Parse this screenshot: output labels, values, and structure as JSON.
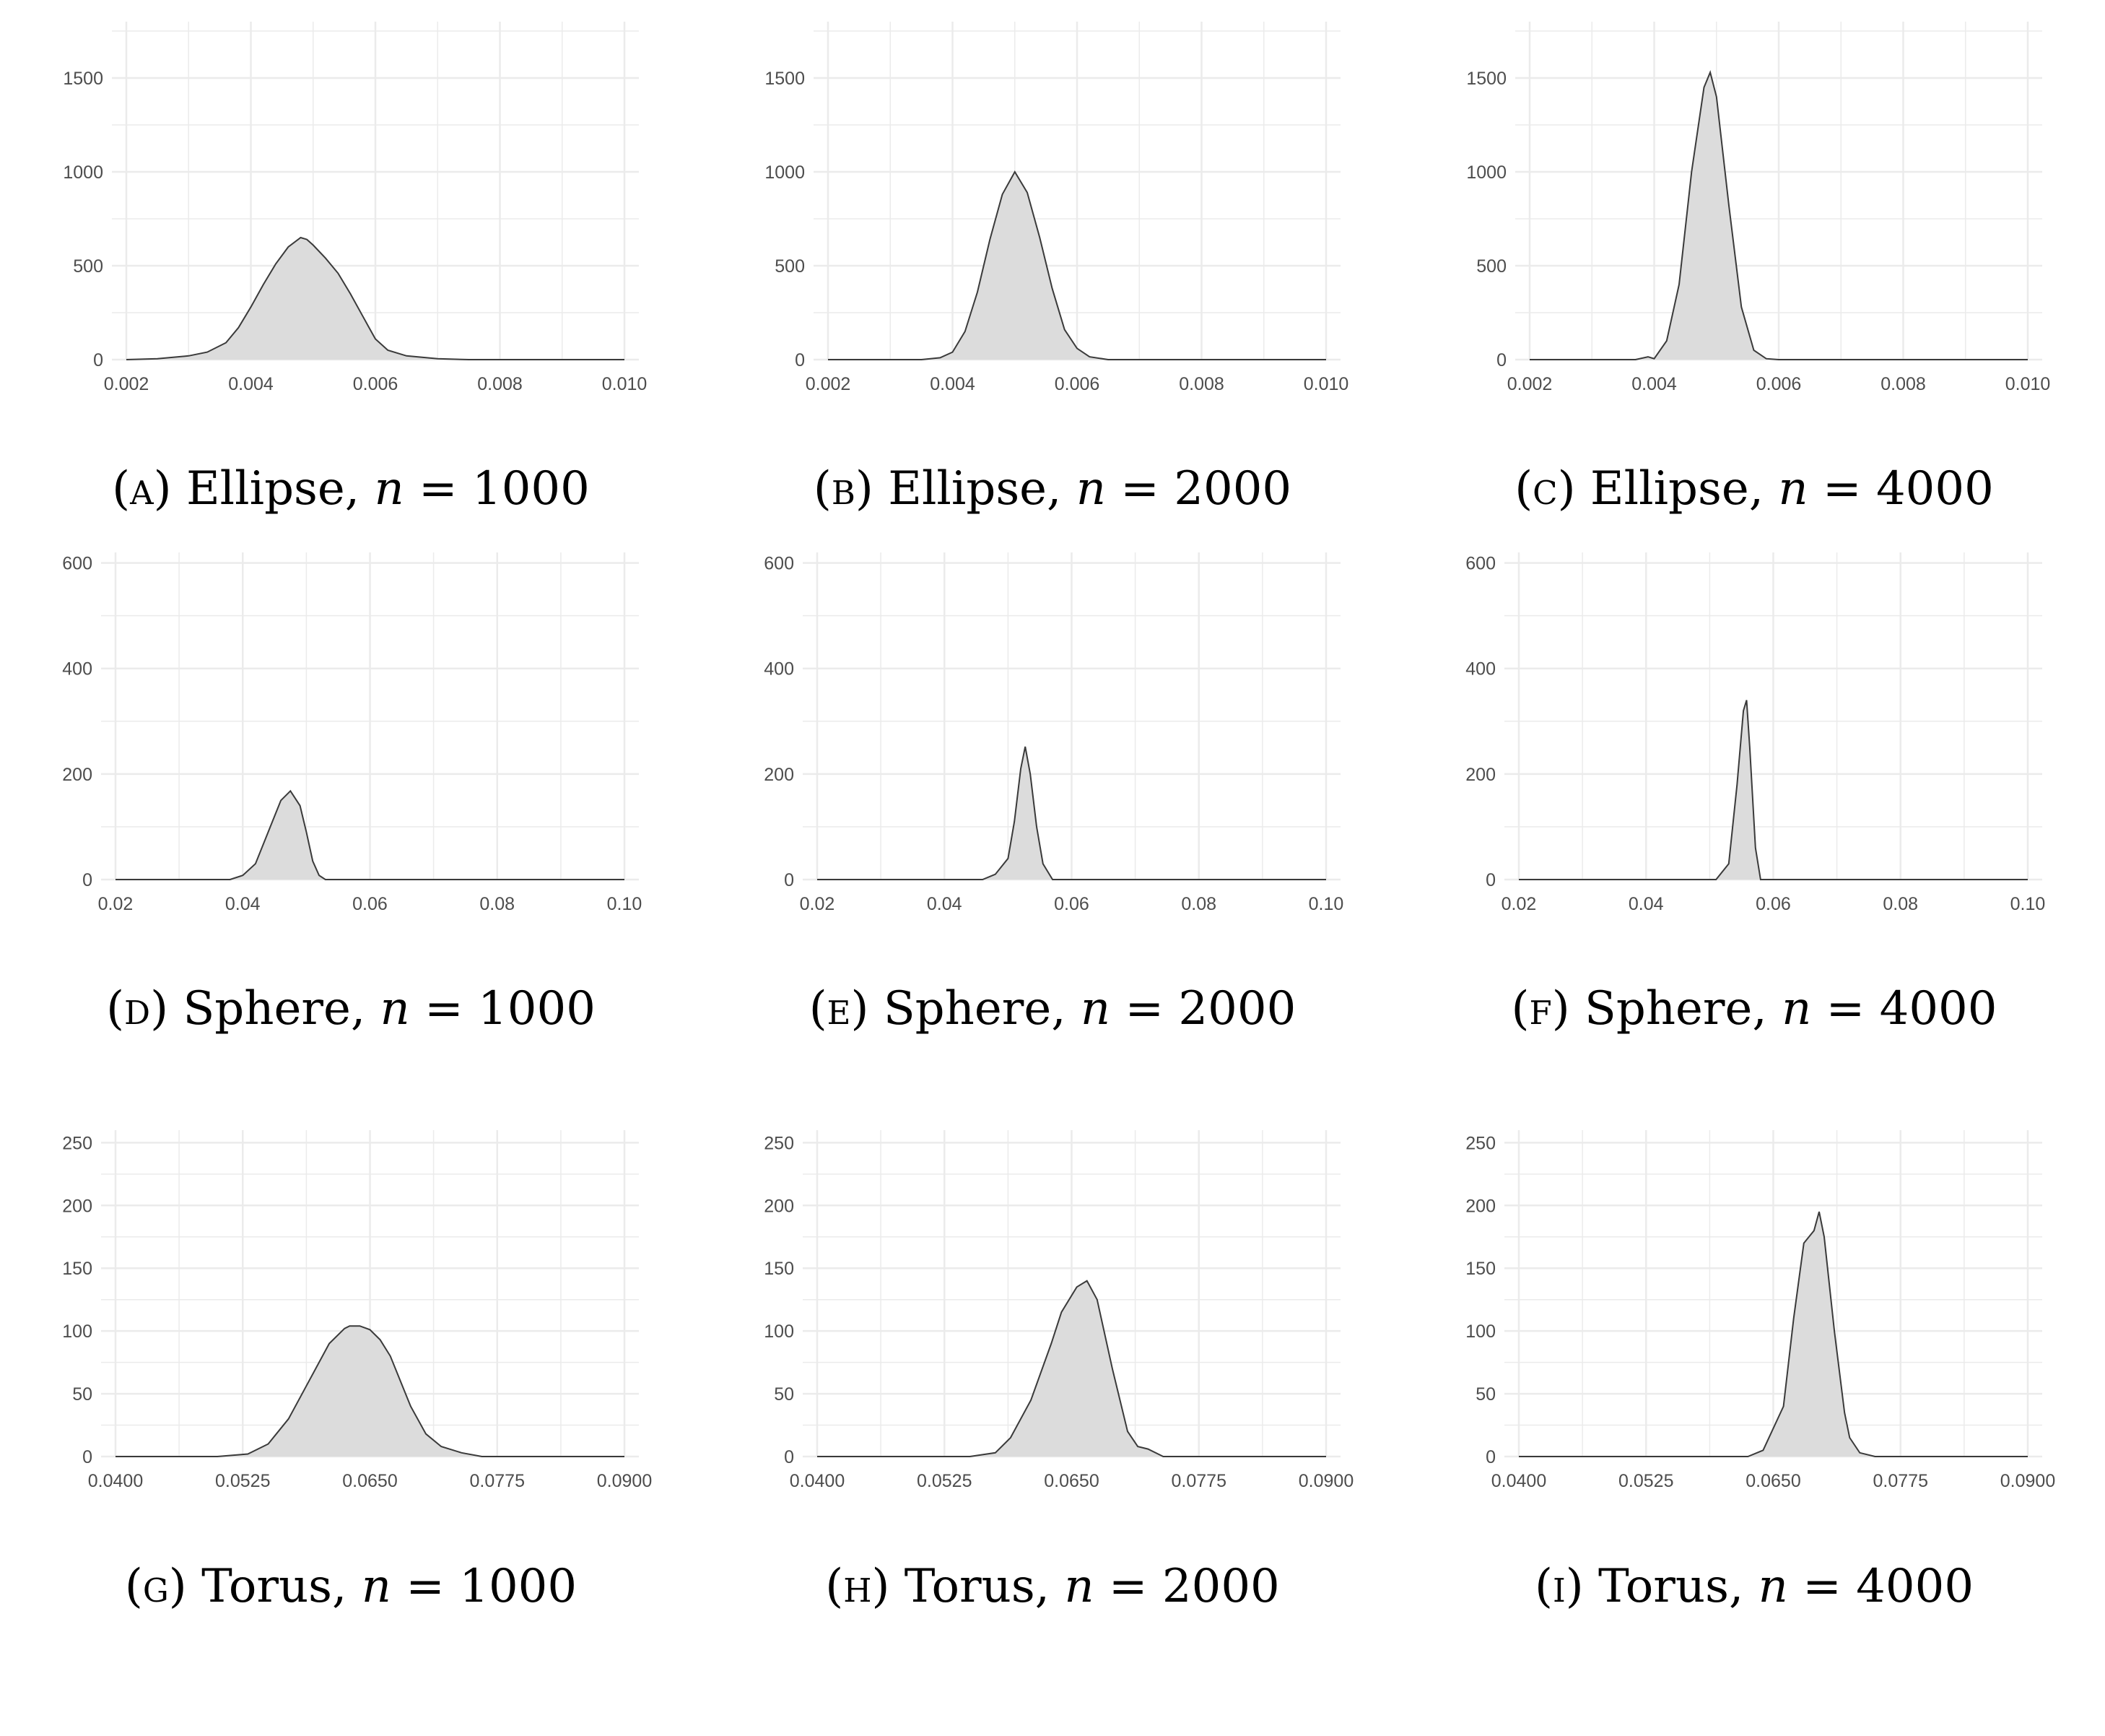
{
  "colors": {
    "fill": "#dcdcdc",
    "line": "#3a3a3a",
    "grid": "#ebebeb",
    "tick_text": "#4d4d4d"
  },
  "chart_data": [
    {
      "type": "area",
      "id": "a",
      "caption": {
        "letter": "a",
        "name": "Ellipse",
        "n_label": "n",
        "n_value": "1000"
      },
      "xlim": [
        0.002,
        0.01
      ],
      "ylim": [
        0,
        1800
      ],
      "xticks": [
        0.002,
        0.004,
        0.006,
        0.008,
        0.01
      ],
      "xtick_labels": [
        "0.002",
        "0.004",
        "0.006",
        "0.008",
        "0.010"
      ],
      "yticks": [
        0,
        500,
        1000,
        1500
      ],
      "ytick_labels": [
        "0",
        "500",
        "1000",
        "1500"
      ],
      "grid": true,
      "x": [
        0.002,
        0.0025,
        0.003,
        0.0033,
        0.0036,
        0.0038,
        0.004,
        0.0042,
        0.0044,
        0.0046,
        0.0048,
        0.0049,
        0.005,
        0.0052,
        0.0054,
        0.0056,
        0.0058,
        0.006,
        0.0062,
        0.0065,
        0.007,
        0.0075,
        0.01
      ],
      "y": [
        0,
        5,
        20,
        40,
        90,
        170,
        280,
        400,
        510,
        600,
        650,
        640,
        610,
        540,
        460,
        350,
        230,
        110,
        50,
        20,
        5,
        0,
        0
      ]
    },
    {
      "type": "area",
      "id": "b",
      "caption": {
        "letter": "b",
        "name": "Ellipse",
        "n_label": "n",
        "n_value": "2000"
      },
      "xlim": [
        0.002,
        0.01
      ],
      "ylim": [
        0,
        1800
      ],
      "xticks": [
        0.002,
        0.004,
        0.006,
        0.008,
        0.01
      ],
      "xtick_labels": [
        "0.002",
        "0.004",
        "0.006",
        "0.008",
        "0.010"
      ],
      "yticks": [
        0,
        500,
        1000,
        1500
      ],
      "ytick_labels": [
        "0",
        "500",
        "1000",
        "1500"
      ],
      "grid": true,
      "x": [
        0.002,
        0.0035,
        0.0038,
        0.004,
        0.0042,
        0.0044,
        0.0046,
        0.0048,
        0.005,
        0.0052,
        0.0054,
        0.0056,
        0.0058,
        0.006,
        0.0062,
        0.0065,
        0.01
      ],
      "y": [
        0,
        0,
        10,
        40,
        150,
        360,
        640,
        880,
        1000,
        890,
        650,
        380,
        160,
        60,
        15,
        0,
        0
      ]
    },
    {
      "type": "area",
      "id": "c",
      "caption": {
        "letter": "c",
        "name": "Ellipse",
        "n_label": "n",
        "n_value": "4000"
      },
      "xlim": [
        0.002,
        0.01
      ],
      "ylim": [
        0,
        1800
      ],
      "xticks": [
        0.002,
        0.004,
        0.006,
        0.008,
        0.01
      ],
      "xtick_labels": [
        "0.002",
        "0.004",
        "0.006",
        "0.008",
        "0.010"
      ],
      "yticks": [
        0,
        500,
        1000,
        1500
      ],
      "ytick_labels": [
        "0",
        "500",
        "1000",
        "1500"
      ],
      "grid": true,
      "x": [
        0.002,
        0.0037,
        0.0039,
        0.004,
        0.0042,
        0.0044,
        0.0046,
        0.0048,
        0.0049,
        0.005,
        0.0052,
        0.0054,
        0.0056,
        0.0058,
        0.006,
        0.01
      ],
      "y": [
        0,
        0,
        15,
        5,
        100,
        400,
        1000,
        1450,
        1530,
        1400,
        820,
        280,
        50,
        5,
        0,
        0
      ]
    },
    {
      "type": "area",
      "id": "d",
      "caption": {
        "letter": "d",
        "name": "Sphere",
        "n_label": "n",
        "n_value": "1000"
      },
      "xlim": [
        0.02,
        0.1
      ],
      "ylim": [
        0,
        620
      ],
      "xticks": [
        0.02,
        0.04,
        0.06,
        0.08,
        0.1
      ],
      "xtick_labels": [
        "0.02",
        "0.04",
        "0.06",
        "0.08",
        "0.10"
      ],
      "yticks": [
        0,
        200,
        400,
        600
      ],
      "ytick_labels": [
        "0",
        "200",
        "400",
        "600"
      ],
      "grid": true,
      "x": [
        0.02,
        0.038,
        0.04,
        0.042,
        0.044,
        0.046,
        0.0475,
        0.049,
        0.05,
        0.051,
        0.052,
        0.053,
        0.1
      ],
      "y": [
        0,
        0,
        8,
        30,
        90,
        150,
        168,
        140,
        90,
        35,
        8,
        0,
        0
      ]
    },
    {
      "type": "area",
      "id": "e",
      "caption": {
        "letter": "e",
        "name": "Sphere",
        "n_label": "n",
        "n_value": "2000"
      },
      "xlim": [
        0.02,
        0.1
      ],
      "ylim": [
        0,
        620
      ],
      "xticks": [
        0.02,
        0.04,
        0.06,
        0.08,
        0.1
      ],
      "xtick_labels": [
        "0.02",
        "0.04",
        "0.06",
        "0.08",
        "0.10"
      ],
      "yticks": [
        0,
        200,
        400,
        600
      ],
      "ytick_labels": [
        "0",
        "200",
        "400",
        "600"
      ],
      "grid": true,
      "x": [
        0.02,
        0.046,
        0.048,
        0.05,
        0.051,
        0.052,
        0.0527,
        0.0535,
        0.0545,
        0.0555,
        0.057,
        0.1
      ],
      "y": [
        0,
        0,
        10,
        40,
        110,
        210,
        252,
        200,
        100,
        30,
        0,
        0
      ]
    },
    {
      "type": "area",
      "id": "f",
      "caption": {
        "letter": "f",
        "name": "Sphere",
        "n_label": "n",
        "n_value": "4000"
      },
      "xlim": [
        0.02,
        0.1
      ],
      "ylim": [
        0,
        620
      ],
      "xticks": [
        0.02,
        0.04,
        0.06,
        0.08,
        0.1
      ],
      "xtick_labels": [
        "0.02",
        "0.04",
        "0.06",
        "0.08",
        "0.10"
      ],
      "yticks": [
        0,
        200,
        400,
        600
      ],
      "ytick_labels": [
        "0",
        "200",
        "400",
        "600"
      ],
      "grid": true,
      "x": [
        0.02,
        0.051,
        0.053,
        0.0543,
        0.0553,
        0.0558,
        0.0563,
        0.0572,
        0.058,
        0.1
      ],
      "y": [
        0,
        0,
        30,
        180,
        320,
        340,
        250,
        60,
        0,
        0
      ]
    },
    {
      "type": "area",
      "id": "g",
      "caption": {
        "letter": "g",
        "name": "Torus",
        "n_label": "n",
        "n_value": "1000"
      },
      "xlim": [
        0.04,
        0.09
      ],
      "ylim": [
        0,
        260
      ],
      "xticks": [
        0.04,
        0.0525,
        0.065,
        0.0775,
        0.09
      ],
      "xtick_labels": [
        "0.0400",
        "0.0525",
        "0.0650",
        "0.0775",
        "0.0900"
      ],
      "yticks": [
        0,
        50,
        100,
        150,
        200,
        250
      ],
      "ytick_labels": [
        "0",
        "50",
        "100",
        "150",
        "200",
        "250"
      ],
      "grid": true,
      "x": [
        0.04,
        0.05,
        0.053,
        0.055,
        0.057,
        0.059,
        0.061,
        0.0625,
        0.063,
        0.064,
        0.065,
        0.066,
        0.067,
        0.068,
        0.069,
        0.0705,
        0.072,
        0.074,
        0.076,
        0.09
      ],
      "y": [
        0,
        0,
        2,
        10,
        30,
        60,
        90,
        102,
        104,
        104,
        101,
        93,
        80,
        60,
        40,
        18,
        8,
        3,
        0,
        0
      ]
    },
    {
      "type": "area",
      "id": "h",
      "caption": {
        "letter": "h",
        "name": "Torus",
        "n_label": "n",
        "n_value": "2000"
      },
      "xlim": [
        0.04,
        0.09
      ],
      "ylim": [
        0,
        260
      ],
      "xticks": [
        0.04,
        0.0525,
        0.065,
        0.0775,
        0.09
      ],
      "xtick_labels": [
        "0.0400",
        "0.0525",
        "0.0650",
        "0.0775",
        "0.0900"
      ],
      "yticks": [
        0,
        50,
        100,
        150,
        200,
        250
      ],
      "ytick_labels": [
        "0",
        "50",
        "100",
        "150",
        "200",
        "250"
      ],
      "grid": true,
      "x": [
        0.04,
        0.055,
        0.0575,
        0.059,
        0.061,
        0.063,
        0.064,
        0.0655,
        0.0665,
        0.0675,
        0.069,
        0.0705,
        0.0715,
        0.0725,
        0.074,
        0.09
      ],
      "y": [
        0,
        0,
        3,
        15,
        45,
        90,
        115,
        135,
        140,
        125,
        70,
        20,
        8,
        6,
        0,
        0
      ]
    },
    {
      "type": "area",
      "id": "i",
      "caption": {
        "letter": "i",
        "name": "Torus",
        "n_label": "n",
        "n_value": "4000"
      },
      "xlim": [
        0.04,
        0.09
      ],
      "ylim": [
        0,
        260
      ],
      "xticks": [
        0.04,
        0.0525,
        0.065,
        0.0775,
        0.09
      ],
      "xtick_labels": [
        "0.0400",
        "0.0525",
        "0.0650",
        "0.0775",
        "0.0900"
      ],
      "yticks": [
        0,
        50,
        100,
        150,
        200,
        250
      ],
      "ytick_labels": [
        "0",
        "50",
        "100",
        "150",
        "200",
        "250"
      ],
      "grid": true,
      "x": [
        0.04,
        0.0625,
        0.064,
        0.066,
        0.067,
        0.068,
        0.069,
        0.0695,
        0.07,
        0.071,
        0.072,
        0.0725,
        0.0735,
        0.075,
        0.09
      ],
      "y": [
        0,
        0,
        5,
        40,
        110,
        170,
        180,
        195,
        175,
        100,
        35,
        15,
        3,
        0,
        0
      ]
    }
  ]
}
